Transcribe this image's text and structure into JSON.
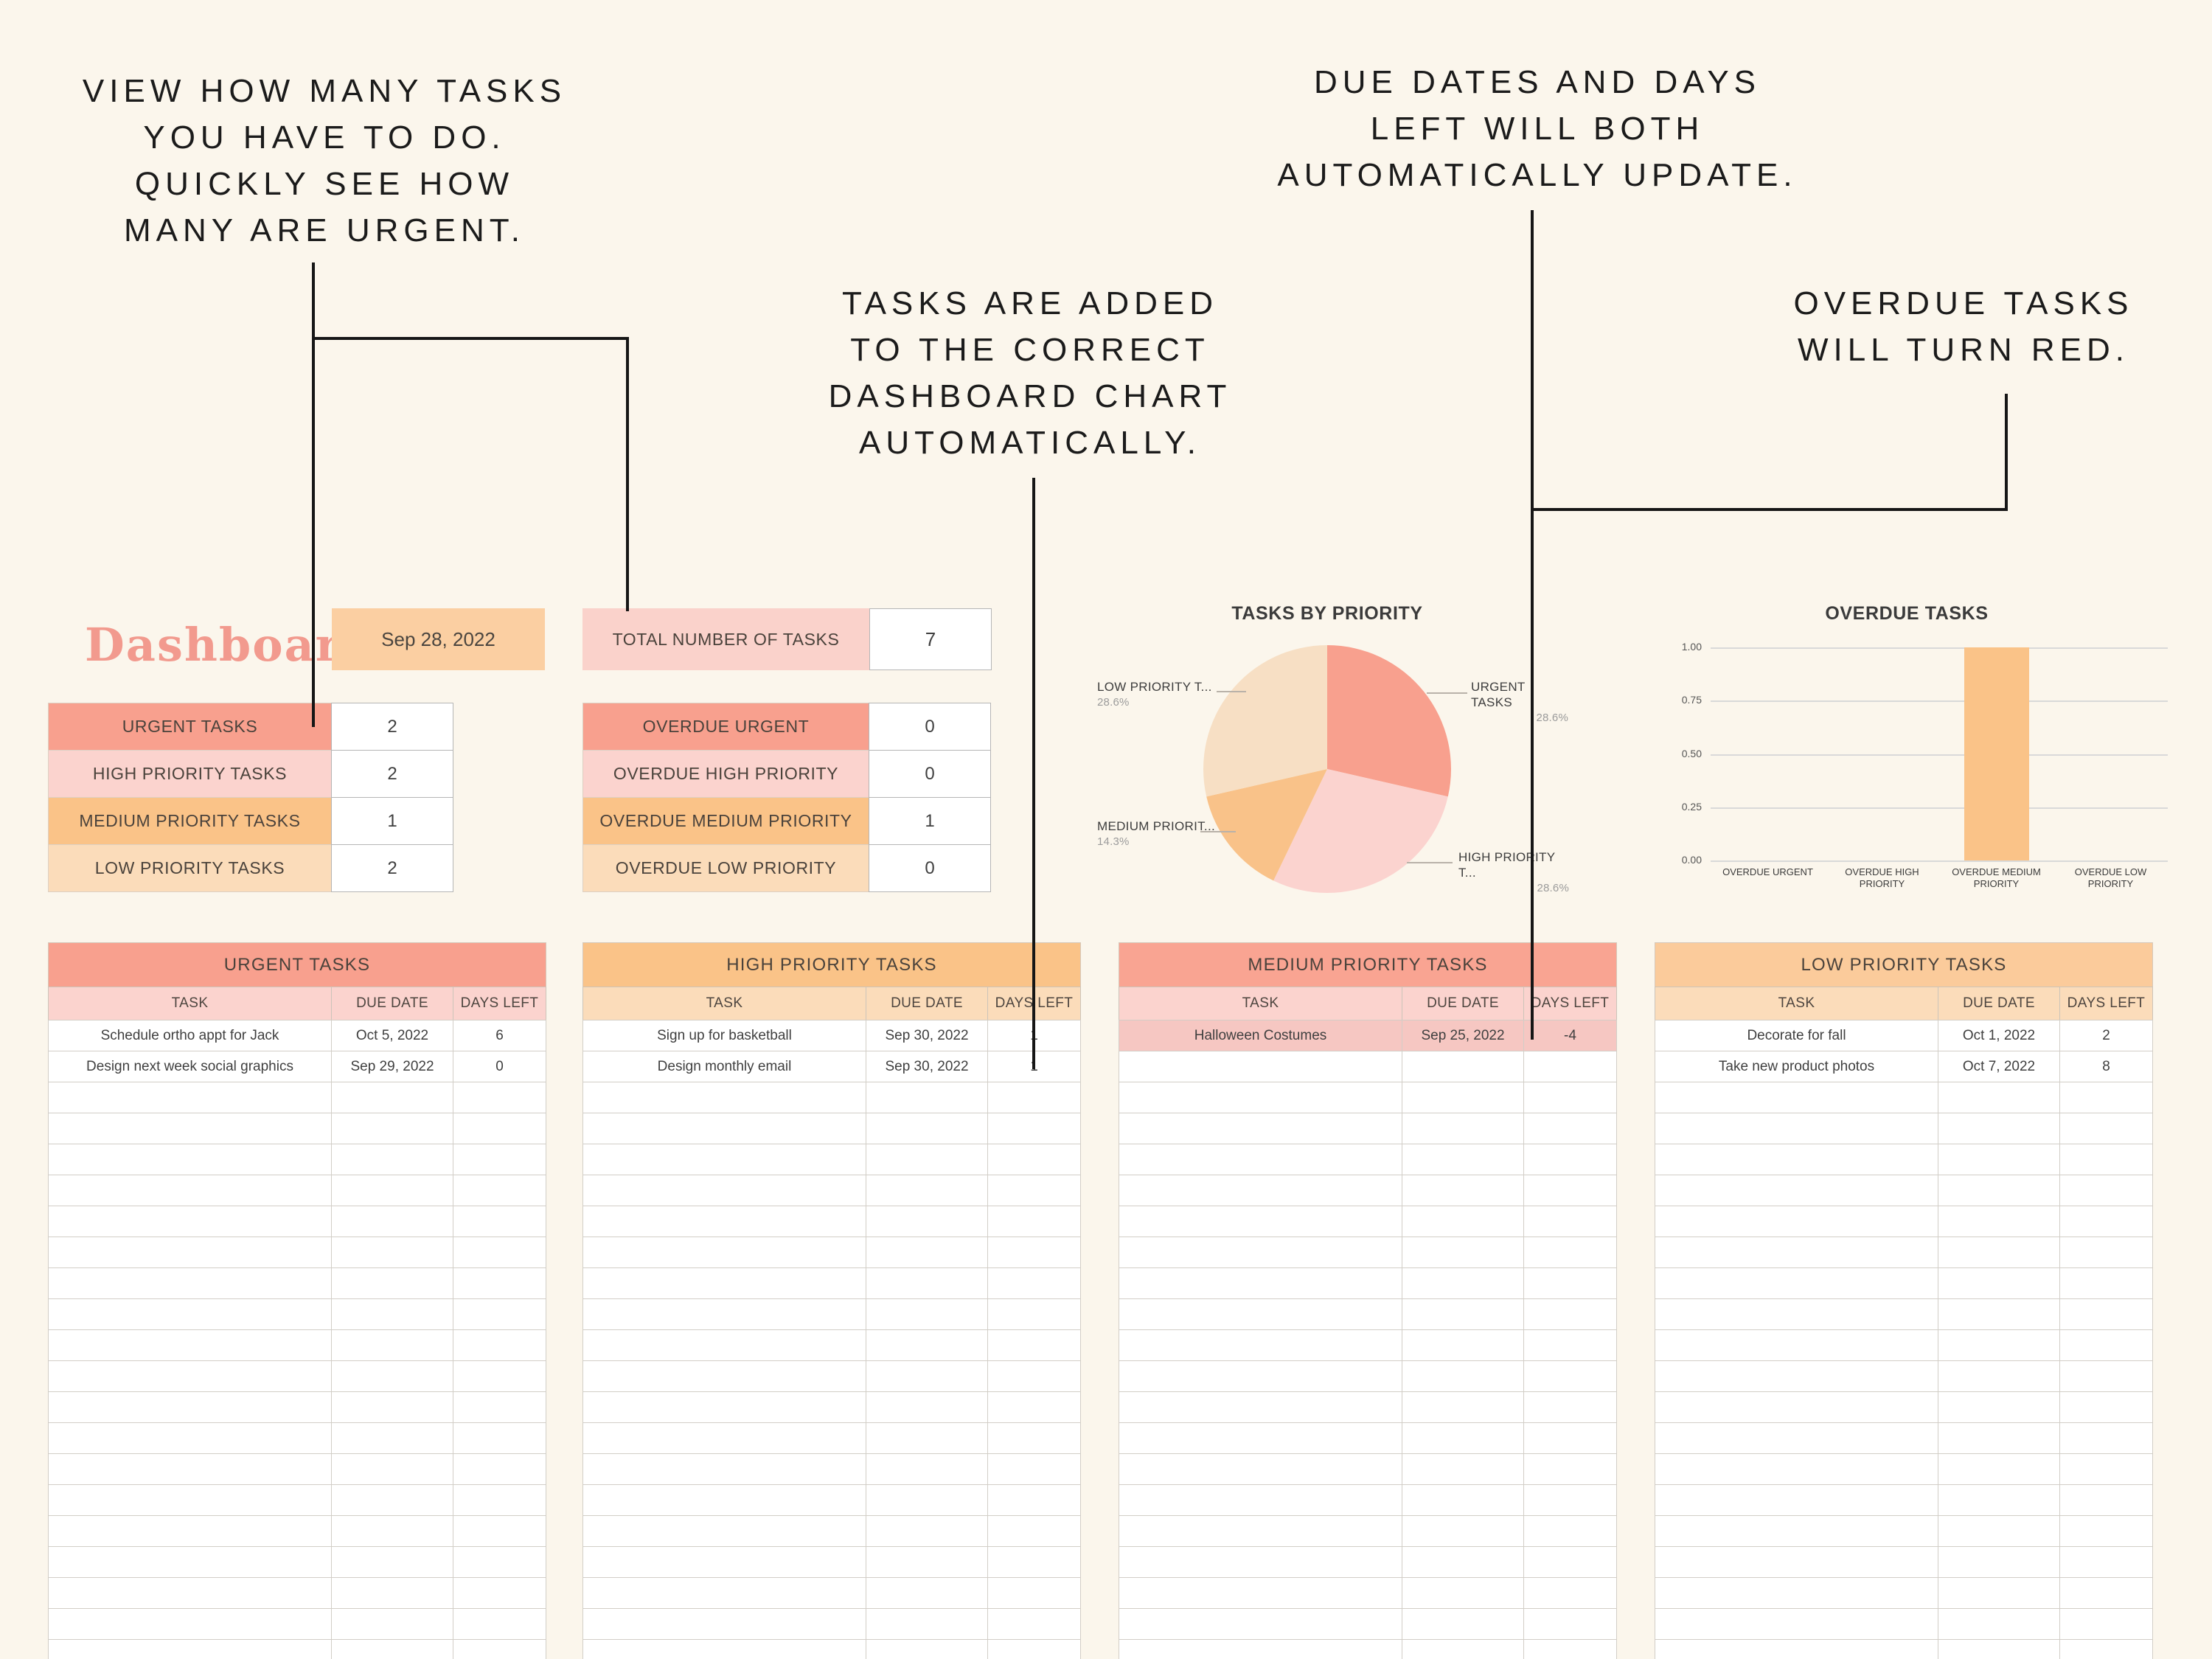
{
  "colors": {
    "background": "#fbf6ec",
    "salmon": "#f8a08e",
    "light_pink": "#fbd3ce",
    "orange": "#fac388",
    "light_peach": "#fbdcba",
    "overdue_row": "#f6c7c2",
    "title_pink": "#f29a8e"
  },
  "annotations": {
    "view_tasks": {
      "text": "VIEW HOW MANY TASKS\nYOU HAVE TO DO.\nQUICKLY SEE HOW\nMANY ARE URGENT."
    },
    "auto_chart": {
      "text": "TASKS ARE ADDED\nTO THE CORRECT\nDASHBOARD CHART\nAUTOMATICALLY."
    },
    "auto_update": {
      "text": "DUE DATES AND DAYS\nLEFT WILL BOTH\nAUTOMATICALLY UPDATE."
    },
    "overdue_red": {
      "text": "OVERDUE TASKS\nWILL TURN RED."
    }
  },
  "header": {
    "title": "Dashboard",
    "date": "Sep 28, 2022",
    "total_label": "TOTAL NUMBER OF TASKS",
    "total_value": "7"
  },
  "priority_summary": {
    "rows": [
      {
        "label": "URGENT TASKS",
        "value": "2",
        "color": "#f8a08e"
      },
      {
        "label": "HIGH PRIORITY TASKS",
        "value": "2",
        "color": "#fbd3ce"
      },
      {
        "label": "MEDIUM PRIORITY TASKS",
        "value": "1",
        "color": "#fac388"
      },
      {
        "label": "LOW PRIORITY TASKS",
        "value": "2",
        "color": "#fbdcba"
      }
    ]
  },
  "overdue_summary": {
    "rows": [
      {
        "label": "OVERDUE URGENT",
        "value": "0",
        "color": "#f8a08e"
      },
      {
        "label": "OVERDUE HIGH PRIORITY",
        "value": "0",
        "color": "#fbd3ce"
      },
      {
        "label": "OVERDUE MEDIUM PRIORITY",
        "value": "1",
        "color": "#fac388"
      },
      {
        "label": "OVERDUE LOW PRIORITY",
        "value": "0",
        "color": "#fbdcba"
      }
    ]
  },
  "chart_data": [
    {
      "type": "pie",
      "title": "TASKS BY PRIORITY",
      "slices": [
        {
          "label": "URGENT TASKS",
          "display_label": "URGENT TASKS",
          "pct": 28.6,
          "pct_label": "28.6%",
          "color": "#f8a08e"
        },
        {
          "label": "HIGH PRIORITY TASKS",
          "display_label": "HIGH PRIORITY T...",
          "pct": 28.6,
          "pct_label": "28.6%",
          "color": "#fbd3cf"
        },
        {
          "label": "MEDIUM PRIORITY TASKS",
          "display_label": "MEDIUM PRIORIT...",
          "pct": 14.3,
          "pct_label": "14.3%",
          "color": "#f9c289"
        },
        {
          "label": "LOW PRIORITY TASKS",
          "display_label": "LOW PRIORITY T...",
          "pct": 28.6,
          "pct_label": "28.6%",
          "color": "#f7dfc4"
        }
      ]
    },
    {
      "type": "bar",
      "title": "OVERDUE TASKS",
      "categories": [
        "OVERDUE URGENT",
        "OVERDUE HIGH PRIORITY",
        "OVERDUE MEDIUM PRIORITY",
        "OVERDUE LOW PRIORITY"
      ],
      "values": [
        0,
        0,
        1,
        0
      ],
      "bar_color": "#fac388",
      "ylim": [
        0,
        1
      ],
      "yticks": [
        "1.00",
        "0.75",
        "0.50",
        "0.25",
        "0.00"
      ],
      "grid": true,
      "legend": "none"
    }
  ],
  "tables": [
    {
      "title": "URGENT TASKS",
      "header_color": "#f8a08e",
      "subheader_color": "#fbd3ce",
      "columns": [
        "TASK",
        "DUE DATE",
        "DAYS LEFT"
      ],
      "rows": [
        {
          "task": "Schedule ortho appt for Jack",
          "due": "Oct 5, 2022",
          "days": "6"
        },
        {
          "task": "Design next week social graphics",
          "due": "Sep 29, 2022",
          "days": "0"
        }
      ]
    },
    {
      "title": "HIGH PRIORITY TASKS",
      "header_color": "#fac388",
      "subheader_color": "#fbdcba",
      "columns": [
        "TASK",
        "DUE DATE",
        "DAYS LEFT"
      ],
      "rows": [
        {
          "task": "Sign up for basketball",
          "due": "Sep 30, 2022",
          "days": "1"
        },
        {
          "task": "Design monthly email",
          "due": "Sep 30, 2022",
          "days": "1"
        }
      ]
    },
    {
      "title": "MEDIUM PRIORITY TASKS",
      "header_color": "#f9a492",
      "subheader_color": "#fbd3ce",
      "columns": [
        "TASK",
        "DUE DATE",
        "DAYS LEFT"
      ],
      "rows": [
        {
          "task": "Halloween Costumes",
          "due": "Sep 25, 2022",
          "days": "-4",
          "overdue": true
        }
      ]
    },
    {
      "title": "LOW PRIORITY TASKS",
      "header_color": "#fbcb9b",
      "subheader_color": "#fbdcba",
      "columns": [
        "TASK",
        "DUE DATE",
        "DAYS LEFT"
      ],
      "rows": [
        {
          "task": "Decorate for fall",
          "due": "Oct 1, 2022",
          "days": "2"
        },
        {
          "task": "Take new product photos",
          "due": "Oct 7, 2022",
          "days": "8"
        }
      ]
    }
  ]
}
